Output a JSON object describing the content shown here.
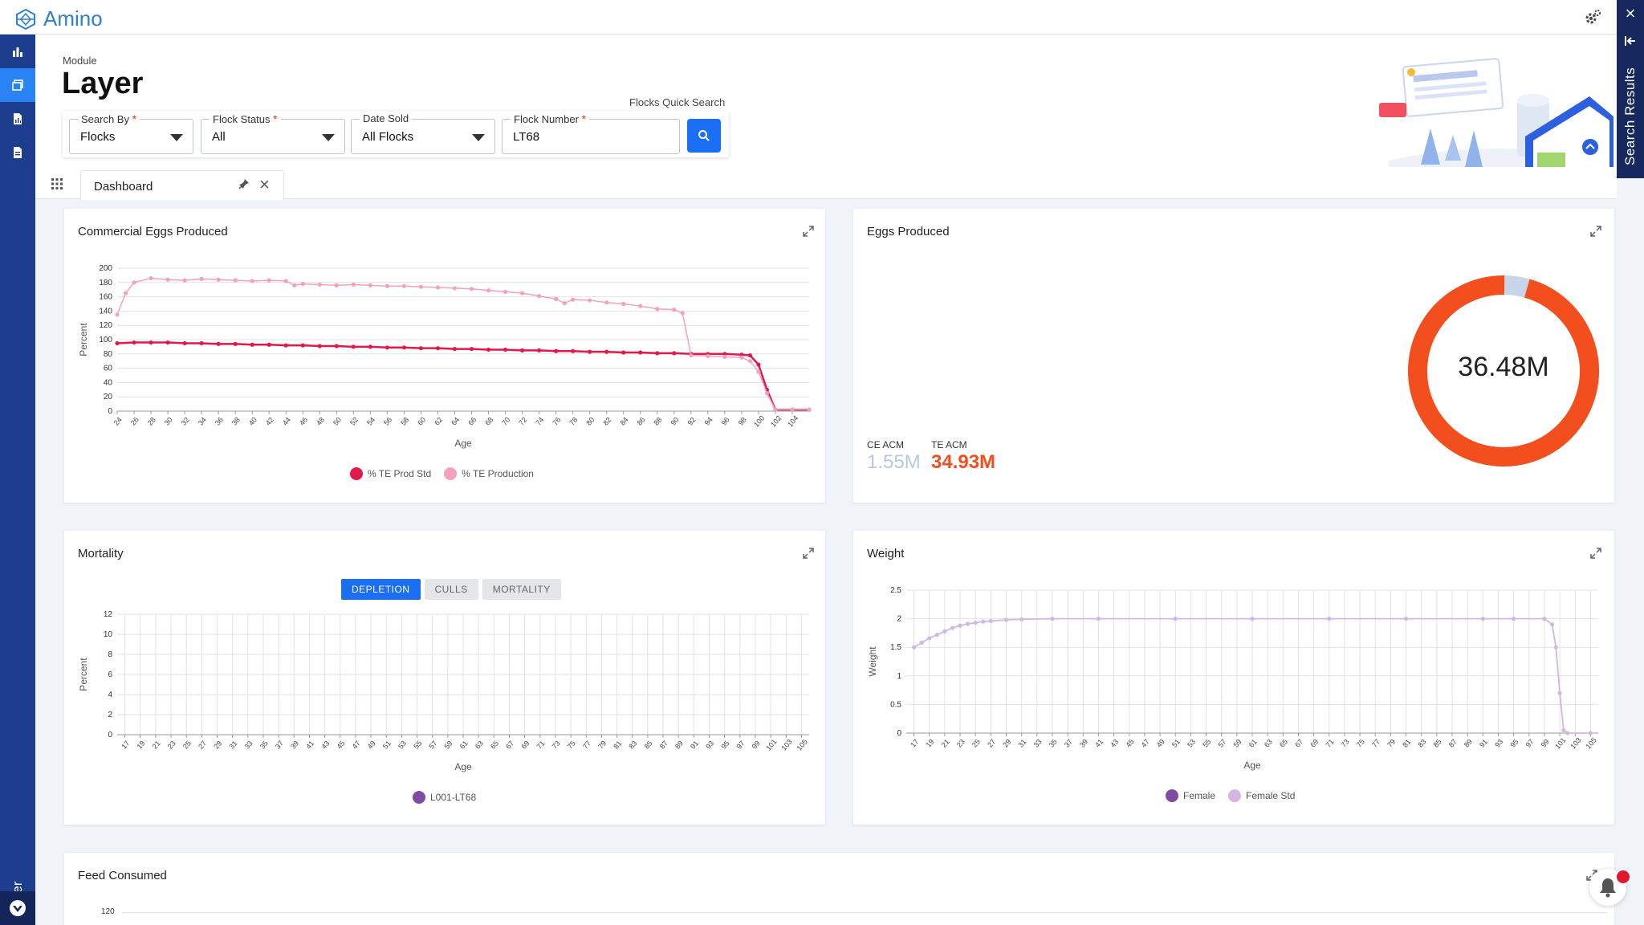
{
  "app": {
    "name": "Amino"
  },
  "header": {
    "module_label": "Module",
    "title": "Layer",
    "quick_search_label": "Flocks Quick Search"
  },
  "search": {
    "search_by": {
      "label": "Search By",
      "value": "Flocks"
    },
    "flock_status": {
      "label": "Flock Status",
      "value": "All"
    },
    "date_sold": {
      "label": "Date Sold",
      "value": "All Flocks"
    },
    "flock_number": {
      "label": "Flock Number",
      "value": "LT68"
    },
    "required_mark": "*"
  },
  "sidebar": {
    "items": [
      {
        "icon": "bar-chart-icon",
        "active": false
      },
      {
        "icon": "layers-icon",
        "active": true
      },
      {
        "icon": "report-icon",
        "active": false
      },
      {
        "icon": "document-icon",
        "active": false
      }
    ],
    "module_label": "Layer"
  },
  "right_panel": {
    "label": "Search Results"
  },
  "tabs": [
    {
      "label": "Dashboard"
    }
  ],
  "colors": {
    "accent": "#1a6ff5",
    "sidebar": "#1d3d8f",
    "prod_std": "#e0184c",
    "te_production": "#f4a2bc",
    "donut": "#f24e1e",
    "donut_gap": "#c8d4e8",
    "ce_acm": "#b6c9e3",
    "te_acm": "#f24e1e",
    "female": "#7e4ca0",
    "female_std": "#d2b8e0",
    "mortality_series": "#7e4ca0"
  },
  "cards": {
    "commercial_eggs": {
      "title": "Commercial Eggs Produced",
      "chart_data": {
        "type": "line",
        "xlabel": "Age",
        "ylabel": "Percent",
        "ylim": [
          0,
          200
        ],
        "yticks": [
          0,
          20,
          40,
          60,
          80,
          100,
          120,
          140,
          160,
          180,
          200
        ],
        "x_tick_labels": [
          "24",
          "26",
          "28",
          "30",
          "32",
          "34",
          "36",
          "38",
          "40",
          "42",
          "44",
          "46",
          "48",
          "50",
          "52",
          "54",
          "56",
          "58",
          "60",
          "62",
          "64",
          "66",
          "68",
          "70",
          "72",
          "74",
          "76",
          "78",
          "80",
          "82",
          "84",
          "86",
          "88",
          "90",
          "92",
          "94",
          "96",
          "98",
          "100",
          "102",
          "104"
        ],
        "series": [
          {
            "name": "% TE Prod Std",
            "x": [
              24,
              26,
              28,
              30,
              32,
              34,
              36,
              38,
              40,
              42,
              44,
              46,
              48,
              50,
              52,
              54,
              56,
              58,
              60,
              62,
              64,
              66,
              68,
              70,
              72,
              74,
              76,
              78,
              80,
              82,
              84,
              86,
              88,
              90,
              92,
              94,
              96,
              98,
              99,
              100,
              101,
              102,
              104,
              106
            ],
            "values": [
              95,
              96,
              96,
              96,
              95,
              95,
              94,
              94,
              93,
              93,
              92,
              92,
              91,
              91,
              90,
              90,
              89,
              89,
              88,
              88,
              87,
              87,
              86,
              86,
              85,
              85,
              84,
              84,
              83,
              83,
              82,
              82,
              81,
              81,
              80,
              80,
              80,
              79,
              78,
              65,
              30,
              2,
              2,
              2
            ]
          },
          {
            "name": "% TE Production",
            "x": [
              24,
              25,
              26,
              28,
              30,
              32,
              34,
              36,
              38,
              40,
              42,
              44,
              45,
              46,
              48,
              50,
              52,
              54,
              56,
              58,
              60,
              62,
              64,
              66,
              68,
              70,
              72,
              74,
              76,
              77,
              78,
              80,
              82,
              84,
              86,
              88,
              90,
              91,
              92,
              94,
              96,
              98,
              99,
              100,
              101,
              102,
              104,
              106
            ],
            "values": [
              135,
              165,
              180,
              186,
              184,
              183,
              185,
              184,
              183,
              182,
              183,
              182,
              176,
              178,
              177,
              176,
              177,
              176,
              175,
              175,
              174,
              173,
              172,
              171,
              169,
              167,
              165,
              161,
              157,
              151,
              156,
              155,
              152,
              150,
              147,
              143,
              142,
              137,
              78,
              77,
              76,
              75,
              70,
              55,
              25,
              2,
              2,
              2
            ]
          }
        ]
      }
    },
    "eggs_produced": {
      "title": "Eggs Produced",
      "ce_acm_label": "CE ACM",
      "ce_acm_value": "1.55M",
      "te_acm_label": "TE ACM",
      "te_acm_value": "34.93M",
      "total_value": "36.48M",
      "chart_data": {
        "type": "pie",
        "categories": [
          "CE ACM",
          "TE ACM"
        ],
        "values": [
          1.55,
          34.93
        ]
      }
    },
    "mortality": {
      "title": "Mortality",
      "toggles": [
        "DEPLETION",
        "CULLS",
        "MORTALITY"
      ],
      "active_toggle": "DEPLETION",
      "chart_data": {
        "type": "line",
        "xlabel": "Age",
        "ylabel": "Percent",
        "ylim": [
          0,
          12
        ],
        "yticks": [
          0,
          2,
          4,
          6,
          8,
          10,
          12
        ],
        "x_tick_labels": [
          "17",
          "19",
          "21",
          "23",
          "25",
          "27",
          "29",
          "31",
          "33",
          "35",
          "37",
          "39",
          "41",
          "43",
          "45",
          "47",
          "49",
          "51",
          "53",
          "55",
          "57",
          "59",
          "61",
          "63",
          "65",
          "67",
          "69",
          "71",
          "73",
          "75",
          "77",
          "79",
          "81",
          "83",
          "85",
          "87",
          "89",
          "91",
          "93",
          "95",
          "97",
          "99",
          "101",
          "103",
          "105"
        ],
        "series": [
          {
            "name": "L001-LT68",
            "x": [],
            "values": []
          }
        ]
      }
    },
    "weight": {
      "title": "Weight",
      "chart_data": {
        "type": "line",
        "xlabel": "Age",
        "ylabel": "Weight",
        "ylim": [
          0,
          2.5
        ],
        "yticks": [
          0,
          0.5,
          1,
          1.5,
          2,
          2.5
        ],
        "x_tick_labels": [
          "17",
          "19",
          "21",
          "23",
          "25",
          "27",
          "29",
          "31",
          "33",
          "35",
          "37",
          "39",
          "41",
          "43",
          "45",
          "47",
          "49",
          "51",
          "53",
          "55",
          "57",
          "59",
          "61",
          "63",
          "65",
          "67",
          "69",
          "71",
          "73",
          "75",
          "77",
          "79",
          "81",
          "83",
          "85",
          "87",
          "89",
          "91",
          "93",
          "95",
          "97",
          "99",
          "101",
          "103",
          "105"
        ],
        "series": [
          {
            "name": "Female",
            "x": [],
            "values": []
          },
          {
            "name": "Female Std",
            "x": [
              17,
              18,
              19,
              20,
              21,
              22,
              23,
              24,
              25,
              26,
              27,
              29,
              31,
              35,
              41,
              51,
              61,
              71,
              81,
              91,
              95,
              99,
              100,
              100.5,
              101,
              101.5,
              102,
              105
            ],
            "values": [
              1.5,
              1.58,
              1.66,
              1.72,
              1.78,
              1.84,
              1.88,
              1.91,
              1.93,
              1.95,
              1.96,
              1.98,
              1.99,
              2.0,
              2.0,
              2.0,
              2.0,
              2.0,
              2.0,
              2.0,
              2.0,
              2.0,
              1.9,
              1.5,
              0.7,
              0.05,
              0,
              0
            ]
          }
        ]
      }
    },
    "feed_consumed": {
      "title": "Feed Consumed",
      "top_tick": "120"
    }
  }
}
